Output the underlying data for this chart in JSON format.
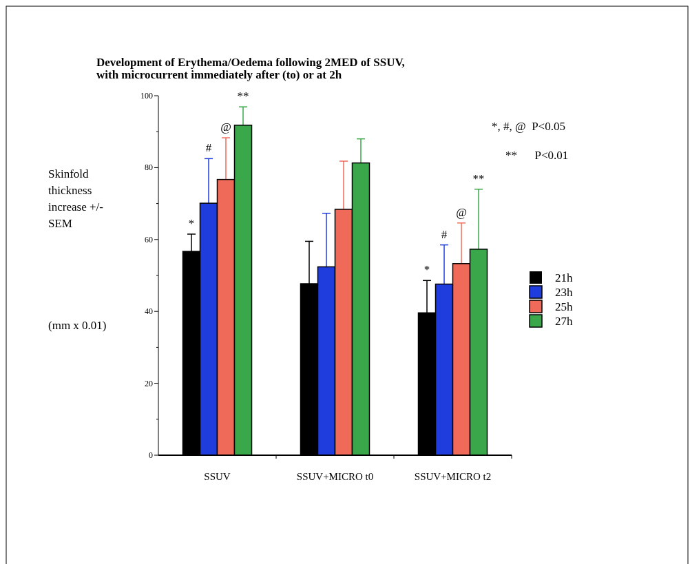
{
  "chart_data": {
    "type": "bar",
    "title": "Development of Erythema/Oedema following 2MED of SSUV,\nwith microcurrent immediately after (to) or at 2h",
    "ylabel": "Skinfold thickness increase +/- SEM",
    "categories": [
      "SSUV",
      "SSUV+MICRO t0",
      "SSUV+MICRO t2"
    ],
    "series": [
      {
        "name": "21h",
        "color": "#000000",
        "values": [
          56.7,
          47.7,
          39.6
        ],
        "errors": [
          [
            56.7,
            61.5
          ],
          [
            47.7,
            59.5
          ],
          [
            39.6,
            48.6
          ]
        ]
      },
      {
        "name": "23h",
        "color": "#1f3ddc",
        "values": [
          70.1,
          52.4,
          47.6
        ],
        "errors": [
          [
            70.1,
            82.5
          ],
          [
            52.4,
            67.3
          ],
          [
            47.6,
            58.5
          ]
        ]
      },
      {
        "name": "25h",
        "color": "#f06a5a",
        "values": [
          76.7,
          68.4,
          53.3
        ],
        "errors": [
          [
            76.7,
            88.3
          ],
          [
            68.4,
            81.8
          ],
          [
            53.3,
            64.6
          ]
        ]
      },
      {
        "name": "27h",
        "color": "#3aa84a",
        "values": [
          91.8,
          81.3,
          57.3
        ],
        "errors": [
          [
            91.8,
            96.9
          ],
          [
            81.3,
            88
          ],
          [
            57.3,
            74
          ]
        ]
      }
    ],
    "ylim": [
      0,
      100
    ],
    "yticks": [
      0,
      {
        "value": 10,
        "label": null
      },
      20,
      {
        "value": 30,
        "label": null
      },
      40,
      {
        "value": 50,
        "label": null
      },
      60,
      {
        "value": 70,
        "label": null
      },
      80,
      {
        "value": 90,
        "label": null
      },
      100
    ],
    "legend": "right",
    "grid": false,
    "annotations": [
      "*",
      "#",
      "@",
      "**",
      "*",
      "#",
      "@",
      "**",
      "*, #, @  P<0.05",
      "**      P<0.01",
      "(mm x 0.01)"
    ]
  }
}
